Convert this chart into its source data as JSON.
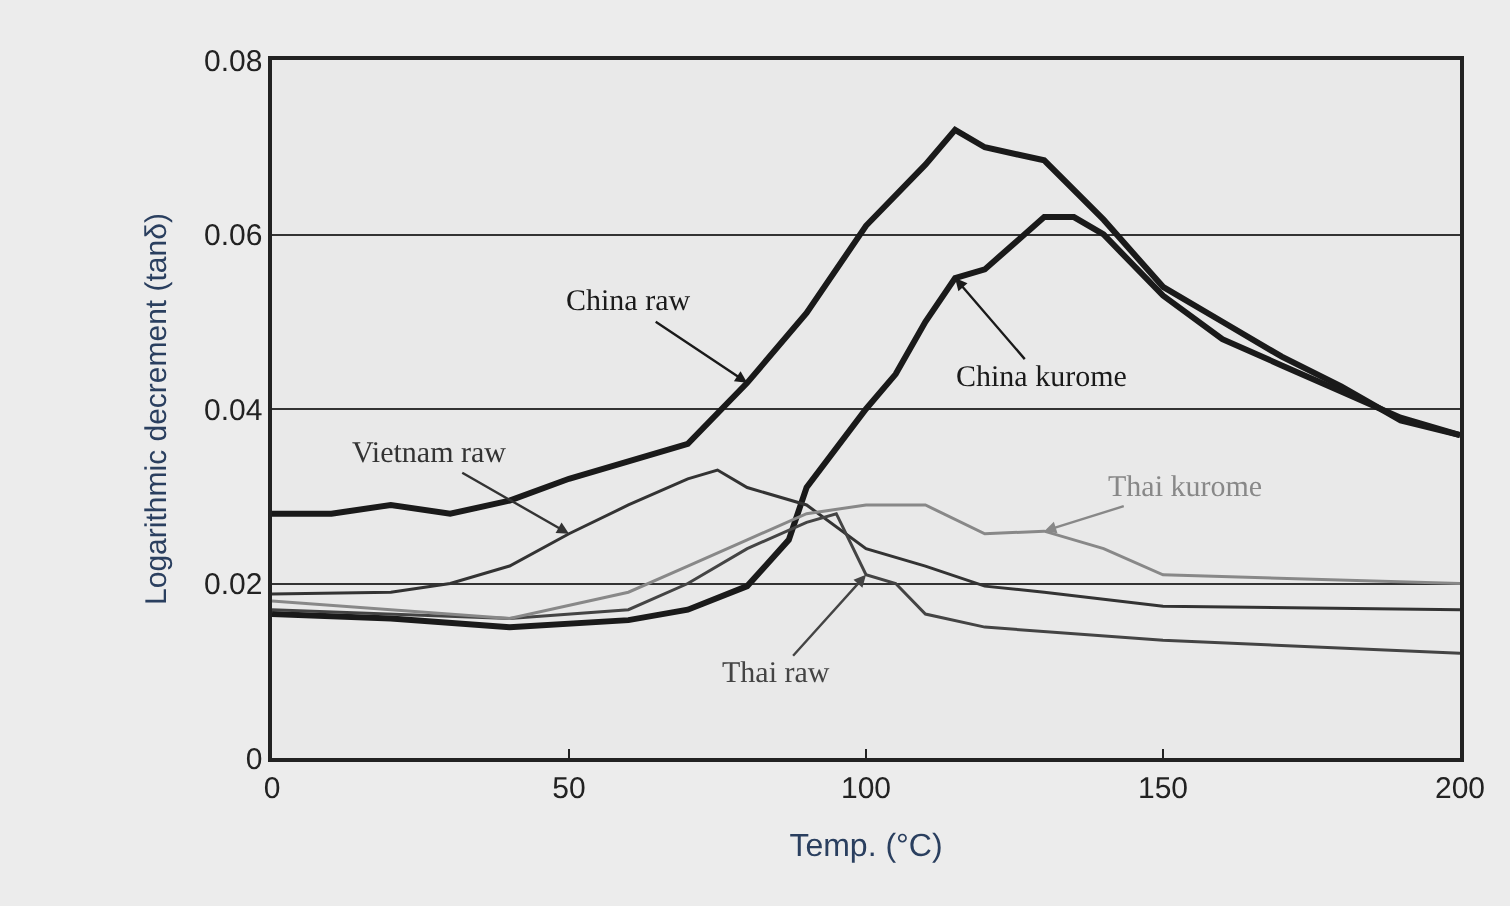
{
  "chart_data": {
    "type": "line",
    "xlabel": "Temp. (°C)",
    "ylabel": "Logarithmic decrement (tanδ)",
    "xlim": [
      0,
      200
    ],
    "xticks": [
      0,
      50,
      100,
      150,
      200
    ],
    "ylim": [
      0,
      0.08
    ],
    "yticks": [
      0,
      0.02,
      0.04,
      0.06,
      0.08
    ],
    "grid": "y",
    "legend": false,
    "series": [
      {
        "name": "China raw",
        "color": "#1a1a1a",
        "x": [
          0,
          10,
          20,
          30,
          40,
          50,
          60,
          70,
          80,
          90,
          100,
          110,
          115,
          120,
          130,
          140,
          150,
          160,
          170,
          180,
          190,
          200
        ],
        "values": [
          0.028,
          0.028,
          0.029,
          0.028,
          0.0295,
          0.032,
          0.034,
          0.036,
          0.043,
          0.051,
          0.061,
          0.068,
          0.072,
          0.07,
          0.0685,
          0.0617,
          0.054,
          0.05,
          0.046,
          0.0426,
          0.0387,
          0.037
        ]
      },
      {
        "name": "China kurome",
        "color": "#1a1a1a",
        "x": [
          0,
          20,
          40,
          60,
          70,
          80,
          87,
          90,
          100,
          105,
          110,
          115,
          120,
          125,
          130,
          135,
          140,
          150,
          160,
          170,
          180,
          190,
          200
        ],
        "values": [
          0.0165,
          0.016,
          0.015,
          0.0158,
          0.017,
          0.0197,
          0.025,
          0.031,
          0.04,
          0.044,
          0.05,
          0.055,
          0.056,
          0.059,
          0.062,
          0.062,
          0.06,
          0.053,
          0.048,
          0.045,
          0.042,
          0.039,
          0.037
        ]
      },
      {
        "name": "Vietnam raw",
        "color": "#333333",
        "x": [
          0,
          20,
          30,
          40,
          50,
          60,
          70,
          75,
          80,
          90,
          100,
          110,
          120,
          130,
          150,
          200
        ],
        "values": [
          0.0188,
          0.019,
          0.02,
          0.022,
          0.0257,
          0.029,
          0.032,
          0.033,
          0.031,
          0.029,
          0.024,
          0.022,
          0.0197,
          0.019,
          0.0174,
          0.017
        ]
      },
      {
        "name": "Thai raw",
        "color": "#444444",
        "x": [
          0,
          40,
          60,
          70,
          80,
          90,
          95,
          100,
          105,
          110,
          120,
          150,
          200
        ],
        "values": [
          0.017,
          0.016,
          0.017,
          0.02,
          0.024,
          0.027,
          0.028,
          0.021,
          0.02,
          0.0165,
          0.015,
          0.0135,
          0.012
        ]
      },
      {
        "name": "Thai kurome",
        "color": "#888888",
        "x": [
          0,
          40,
          60,
          70,
          80,
          90,
          100,
          110,
          120,
          130,
          140,
          150,
          200
        ],
        "values": [
          0.018,
          0.016,
          0.019,
          0.022,
          0.025,
          0.028,
          0.029,
          0.029,
          0.0257,
          0.026,
          0.024,
          0.021,
          0.02
        ]
      }
    ]
  }
}
